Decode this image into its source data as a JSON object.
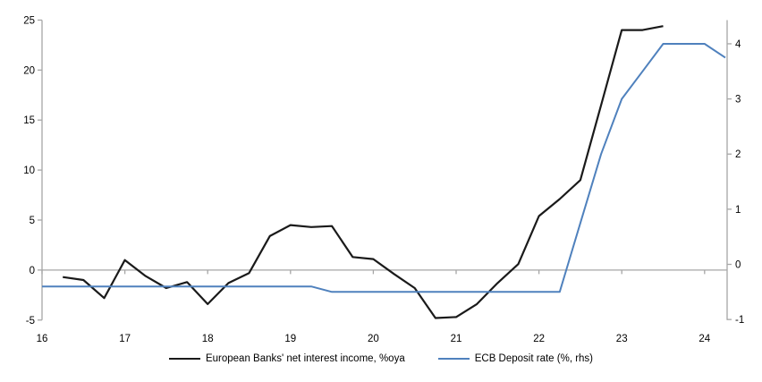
{
  "chart_data": {
    "type": "line",
    "title": "",
    "grid": false,
    "legend_position": "bottom-center",
    "x_axis": {
      "min": 16,
      "max": 24.272,
      "ticks": [
        16,
        17,
        18,
        19,
        20,
        21,
        22,
        23,
        24
      ],
      "tick_style": "on-zero-line"
    },
    "left_axis": {
      "min": -5,
      "max": 25,
      "ticks": [
        25,
        20,
        15,
        10,
        5,
        0,
        -5
      ]
    },
    "right_axis": {
      "min": -1.01,
      "max": 4.43,
      "ticks": [
        4,
        3,
        2,
        1,
        0,
        -1
      ]
    },
    "zero_line_axis": "left",
    "style": {
      "axis_color": "#a6a6a6",
      "text_color": "#000000",
      "background": "#ffffff"
    },
    "series": [
      {
        "id": "nii",
        "name": "European Banks' net interest income, %oya",
        "axis": "left",
        "color": "#1a1a1a",
        "width": 2.2,
        "points": [
          [
            16.25,
            -0.7
          ],
          [
            16.5,
            -1.0
          ],
          [
            16.75,
            -2.8
          ],
          [
            17.0,
            1.0
          ],
          [
            17.25,
            -0.6
          ],
          [
            17.5,
            -1.8
          ],
          [
            17.75,
            -1.2
          ],
          [
            18.0,
            -3.4
          ],
          [
            18.25,
            -1.3
          ],
          [
            18.5,
            -0.3
          ],
          [
            18.75,
            3.4
          ],
          [
            19.0,
            4.5
          ],
          [
            19.25,
            4.3
          ],
          [
            19.5,
            4.4
          ],
          [
            19.75,
            1.3
          ],
          [
            20.0,
            1.1
          ],
          [
            20.25,
            -0.4
          ],
          [
            20.5,
            -1.8
          ],
          [
            20.75,
            -4.8
          ],
          [
            21.0,
            -4.7
          ],
          [
            21.25,
            -3.4
          ],
          [
            21.5,
            -1.3
          ],
          [
            21.75,
            0.6
          ],
          [
            22.0,
            5.4
          ],
          [
            22.25,
            7.1
          ],
          [
            22.5,
            9.0
          ],
          [
            22.75,
            16.5
          ],
          [
            23.0,
            24.0
          ],
          [
            23.25,
            24.0
          ],
          [
            23.5,
            24.4
          ]
        ]
      },
      {
        "id": "ecb",
        "name": "ECB Deposit rate (%, rhs)",
        "axis": "right",
        "color": "#4f81bd",
        "width": 2,
        "points": [
          [
            16.0,
            -0.4
          ],
          [
            16.25,
            -0.4
          ],
          [
            16.5,
            -0.4
          ],
          [
            16.75,
            -0.4
          ],
          [
            17.0,
            -0.4
          ],
          [
            17.25,
            -0.4
          ],
          [
            17.5,
            -0.4
          ],
          [
            17.75,
            -0.4
          ],
          [
            18.0,
            -0.4
          ],
          [
            18.25,
            -0.4
          ],
          [
            18.5,
            -0.4
          ],
          [
            18.75,
            -0.4
          ],
          [
            19.0,
            -0.4
          ],
          [
            19.25,
            -0.4
          ],
          [
            19.5,
            -0.5
          ],
          [
            19.75,
            -0.5
          ],
          [
            20.0,
            -0.5
          ],
          [
            20.25,
            -0.5
          ],
          [
            20.5,
            -0.5
          ],
          [
            20.75,
            -0.5
          ],
          [
            21.0,
            -0.5
          ],
          [
            21.25,
            -0.5
          ],
          [
            21.5,
            -0.5
          ],
          [
            21.75,
            -0.5
          ],
          [
            22.0,
            -0.5
          ],
          [
            22.25,
            -0.5
          ],
          [
            22.5,
            0.75
          ],
          [
            22.75,
            2.0
          ],
          [
            23.0,
            3.0
          ],
          [
            23.25,
            3.5
          ],
          [
            23.5,
            4.0
          ],
          [
            23.75,
            4.0
          ],
          [
            24.0,
            4.0
          ],
          [
            24.25,
            3.75
          ]
        ]
      }
    ]
  }
}
